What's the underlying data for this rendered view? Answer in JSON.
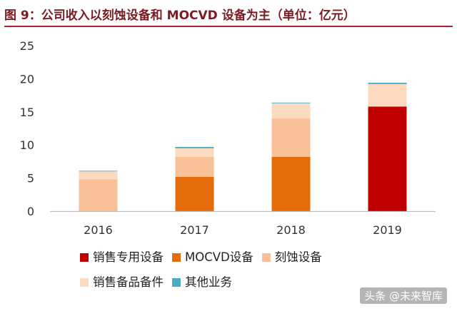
{
  "title": "图 9：公司收入以刻蚀设备和 MOCVD 设备为主（单位：亿元）",
  "watermark": "头条 @未来智库",
  "chart_data": {
    "type": "bar",
    "stacked": true,
    "categories": [
      "2016",
      "2017",
      "2018",
      "2019"
    ],
    "ylim": [
      0,
      25
    ],
    "yticks": [
      0,
      5,
      10,
      15,
      20,
      25
    ],
    "grid": false,
    "legend_position": "bottom",
    "series": [
      {
        "name": "销售专用设备",
        "color": "#c00000",
        "values": [
          0,
          0,
          0,
          15.8
        ]
      },
      {
        "name": "MOCVD设备",
        "color": "#e46c0a",
        "values": [
          0,
          5.2,
          8.2,
          0
        ]
      },
      {
        "name": "刻蚀设备",
        "color": "#f9c198",
        "values": [
          4.8,
          3.0,
          5.8,
          0
        ]
      },
      {
        "name": "销售备品备件",
        "color": "#fcdac0",
        "values": [
          1.2,
          1.3,
          2.3,
          3.4
        ]
      },
      {
        "name": "其他业务",
        "color": "#4bacc6",
        "values": [
          0.1,
          0.2,
          0.1,
          0.2
        ]
      }
    ]
  }
}
